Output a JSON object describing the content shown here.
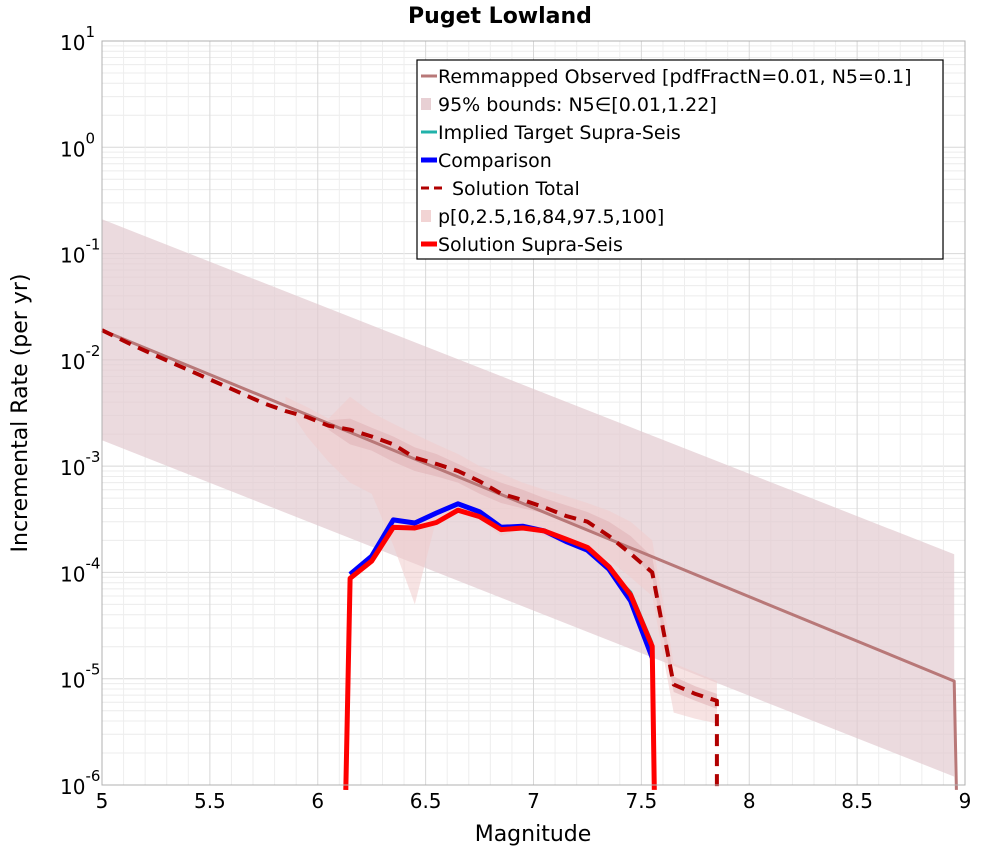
{
  "chart_data": {
    "type": "line",
    "title": "Puget Lowland",
    "xlabel": "Magnitude",
    "ylabel": "Incremental Rate (per yr)",
    "xlim": [
      5,
      9
    ],
    "ylim": [
      1e-06,
      10
    ],
    "yscale": "log",
    "grid": true,
    "legend_position": "top-right",
    "x_ticks": [
      "5",
      "5.5",
      "6",
      "6.5",
      "7",
      "7.5",
      "8",
      "8.5",
      "9"
    ],
    "y_ticks": [
      {
        "base": "10",
        "exp": "1"
      },
      {
        "base": "10",
        "exp": "0"
      },
      {
        "base": "10",
        "exp": "-1"
      },
      {
        "base": "10",
        "exp": "-2"
      },
      {
        "base": "10",
        "exp": "-3"
      },
      {
        "base": "10",
        "exp": "-4"
      },
      {
        "base": "10",
        "exp": "-5"
      },
      {
        "base": "10",
        "exp": "-6"
      }
    ],
    "legend": [
      {
        "label": "Remmapped Observed [pdfFractN=0.01, N5=0.1]",
        "color": "#b87878",
        "style": "line"
      },
      {
        "label": "95% bounds: N5∈[0.01,1.22]",
        "color": "#e8d0d4",
        "style": "patch"
      },
      {
        "label": "Implied Target Supra-Seis",
        "color": "#20b2aa",
        "style": "line"
      },
      {
        "label": "Comparison",
        "color": "#0000ff",
        "style": "thick"
      },
      {
        "label": "Solution Total",
        "color": "#b00000",
        "style": "dashed"
      },
      {
        "label": "p[0,2.5,16,84,97.5,100]",
        "color": "#f2d4d4",
        "style": "patch"
      },
      {
        "label": "Solution Supra-Seis",
        "color": "#ff0000",
        "style": "thick"
      }
    ],
    "bands": [
      {
        "name": "95% bounds: N5∈[0.01,1.22]",
        "color": "#e3cbd0",
        "opacity": 0.7,
        "x": [
          5.0,
          8.95
        ],
        "upper": [
          0.21,
          0.000148
        ],
        "lower": [
          0.00175,
          1.2e-06
        ]
      },
      {
        "name": "p[0,2.5,16,84,97.5,100] outer",
        "color": "#f0cccc",
        "opacity": 0.55,
        "x": [
          5.85,
          5.95,
          6.05,
          6.15,
          6.25,
          6.35,
          6.45,
          6.55,
          6.65,
          6.75,
          6.85,
          6.95,
          7.05,
          7.15,
          7.25,
          7.35,
          7.45,
          7.55,
          7.65,
          7.75,
          7.85
        ],
        "upper": [
          0.0045,
          0.0036,
          0.0028,
          0.0045,
          0.0032,
          0.0025,
          0.002,
          0.0016,
          0.0013,
          0.001,
          0.00085,
          0.0007,
          0.0006,
          0.00052,
          0.00045,
          0.00038,
          0.0003,
          0.0002,
          1.4e-05,
          1.15e-05,
          9.5e-06
        ],
        "lower": [
          0.0038,
          0.0019,
          0.0011,
          0.0007,
          0.00055,
          0.00018,
          5e-05,
          0.00032,
          0.00038,
          0.00032,
          0.00022,
          0.00026,
          0.00022,
          0.00018,
          0.00016,
          0.00013,
          9e-05,
          6e-05,
          4.8e-06,
          4.2e-06,
          3.8e-06
        ]
      },
      {
        "name": "p[0,2.5,16,84,97.5,100] inner",
        "color": "#e0b0b4",
        "opacity": 0.55,
        "x": [
          6.05,
          6.15,
          6.25,
          6.35,
          6.45,
          6.55,
          6.65,
          6.75,
          6.85,
          6.95,
          7.05,
          7.15,
          7.25,
          7.35,
          7.45,
          7.55,
          7.65,
          7.75,
          7.85
        ],
        "upper": [
          0.0027,
          0.0028,
          0.0023,
          0.0019,
          0.0015,
          0.0013,
          0.00105,
          0.00085,
          0.0007,
          0.0006,
          0.0005,
          0.00043,
          0.00037,
          0.0003,
          0.00022,
          0.00014,
          1.05e-05,
          8.5e-06,
          7.2e-06
        ],
        "lower": [
          0.0022,
          0.0016,
          0.0014,
          0.0011,
          0.0009,
          0.0008,
          0.0007,
          0.00055,
          0.00045,
          0.0004,
          0.00036,
          0.0003,
          0.00025,
          0.0002,
          0.00016,
          9e-05,
          7.5e-06,
          6.2e-06,
          5.2e-06
        ]
      }
    ],
    "series": [
      {
        "name": "Remmapped Observed [pdfFractN=0.01, N5=0.1]",
        "color": "#b87878",
        "width": 3,
        "dash": "",
        "x": [
          5.0,
          8.95,
          8.96
        ],
        "y": [
          0.019,
          9.5e-06,
          9e-07
        ]
      },
      {
        "name": "Implied Target Supra-Seis",
        "color": "#20b2aa",
        "width": 3,
        "dash": "",
        "x": [
          6.15,
          6.25,
          6.35,
          6.45,
          6.55,
          6.65,
          6.75,
          6.85,
          6.95,
          7.05,
          7.15,
          7.25,
          7.35,
          7.45,
          7.55
        ],
        "y": [
          9.55e-05,
          0.000142,
          0.00031,
          0.00029,
          0.00036,
          0.00044,
          0.00037,
          0.000265,
          0.00027,
          0.000245,
          0.000195,
          0.00016,
          0.000105,
          6.54e-05,
          2.16e-05
        ]
      },
      {
        "name": "Comparison",
        "color": "#0000ff",
        "width": 5,
        "dash": "",
        "x": [
          6.15,
          6.25,
          6.35,
          6.45,
          6.55,
          6.65,
          6.75,
          6.85,
          6.95,
          7.05,
          7.15,
          7.25,
          7.35,
          7.45,
          7.55
        ],
        "y": [
          9.6e-05,
          0.000142,
          0.000312,
          0.000292,
          0.000362,
          0.000442,
          0.000372,
          0.000266,
          0.000272,
          0.000246,
          0.000196,
          0.000162,
          0.000107,
          5.4e-05,
          1.58e-05
        ]
      },
      {
        "name": "Solution Total",
        "color": "#b00000",
        "width": 4,
        "dash": "12,8",
        "x": [
          5.0,
          5.15,
          5.35,
          5.55,
          5.75,
          5.85,
          5.95,
          6.05,
          6.15,
          6.25,
          6.35,
          6.45,
          6.55,
          6.65,
          6.75,
          6.85,
          6.95,
          7.05,
          7.15,
          7.25,
          7.35,
          7.45,
          7.55,
          7.65,
          7.75,
          7.85,
          7.85
        ],
        "y": [
          0.019,
          0.0135,
          0.0089,
          0.0059,
          0.0039,
          0.0033,
          0.0029,
          0.0024,
          0.0022,
          0.0019,
          0.0016,
          0.0012,
          0.00105,
          0.0009,
          0.00072,
          0.00055,
          0.00048,
          0.00041,
          0.00034,
          0.0003,
          0.00022,
          0.00015,
          0.0001,
          8.8e-06,
          7.2e-06,
          6.2e-06,
          9.5e-07
        ]
      },
      {
        "name": "Solution Supra-Seis",
        "color": "#ff0000",
        "width": 5,
        "dash": "",
        "x": [
          6.13,
          6.15,
          6.25,
          6.35,
          6.45,
          6.55,
          6.65,
          6.75,
          6.85,
          6.95,
          7.05,
          7.15,
          7.25,
          7.35,
          7.45,
          7.55,
          7.56
        ],
        "y": [
          9e-07,
          8.8e-05,
          0.000128,
          0.000265,
          0.000262,
          0.000295,
          0.000385,
          0.000335,
          0.000253,
          0.000262,
          0.000246,
          0.000206,
          0.000172,
          0.000113,
          6.14e-05,
          2.02e-05,
          9e-07
        ]
      }
    ]
  }
}
